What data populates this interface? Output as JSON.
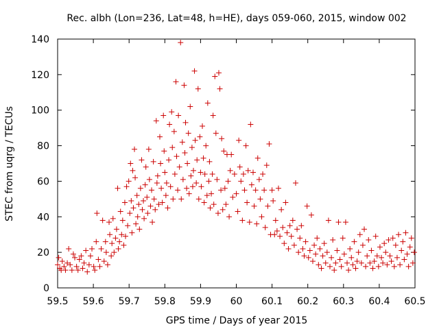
{
  "chart_data": {
    "type": "scatter",
    "title": "Rec. albh (Lon=236, Lat=48, h=HE), days 059-060, 2015, window 002",
    "xlabel": "GPS time / Days of year 2015",
    "ylabel": "STEC from uqrg / TECUs",
    "xlim": [
      59.5,
      60.5
    ],
    "ylim": [
      0,
      140
    ],
    "x_ticks": [
      59.5,
      59.6,
      59.7,
      59.8,
      59.9,
      60.0,
      60.1,
      60.2,
      60.3,
      60.4,
      60.5
    ],
    "x_tick_labels": [
      "59.5",
      "59.6",
      "59.7",
      "59.8",
      "59.9",
      "60",
      "60.1",
      "60.2",
      "60.3",
      "60.4",
      "60.5"
    ],
    "y_ticks": [
      0,
      20,
      40,
      60,
      80,
      100,
      120,
      140
    ],
    "y_tick_labels": [
      "0",
      "20",
      "40",
      "60",
      "80",
      "100",
      "120",
      "140"
    ],
    "grid": false,
    "marker": "+",
    "color": "#cc0000",
    "series": [
      {
        "name": "STEC",
        "points": [
          [
            59.5,
            13
          ],
          [
            59.503,
            17
          ],
          [
            59.506,
            11
          ],
          [
            59.51,
            10
          ],
          [
            59.513,
            15
          ],
          [
            59.518,
            12
          ],
          [
            59.522,
            10
          ],
          [
            59.527,
            14
          ],
          [
            59.531,
            22
          ],
          [
            59.535,
            13
          ],
          [
            59.54,
            10
          ],
          [
            59.544,
            19
          ],
          [
            59.548,
            17
          ],
          [
            59.553,
            12
          ],
          [
            59.557,
            10
          ],
          [
            59.561,
            16
          ],
          [
            59.566,
            18
          ],
          [
            59.57,
            11
          ],
          [
            59.574,
            14
          ],
          [
            59.579,
            21
          ],
          [
            59.583,
            9
          ],
          [
            59.588,
            13
          ],
          [
            59.592,
            18
          ],
          [
            59.596,
            22
          ],
          [
            59.601,
            12
          ],
          [
            59.604,
            10
          ],
          [
            59.608,
            26
          ],
          [
            59.61,
            42
          ],
          [
            59.614,
            16
          ],
          [
            59.618,
            12
          ],
          [
            59.622,
            22
          ],
          [
            59.626,
            38
          ],
          [
            59.63,
            15
          ],
          [
            59.634,
            26
          ],
          [
            59.636,
            20
          ],
          [
            59.64,
            13
          ],
          [
            59.644,
            37
          ],
          [
            59.646,
            30
          ],
          [
            59.65,
            18
          ],
          [
            59.652,
            25
          ],
          [
            59.655,
            39
          ],
          [
            59.658,
            20
          ],
          [
            59.662,
            28
          ],
          [
            59.665,
            33
          ],
          [
            59.668,
            56
          ],
          [
            59.67,
            22
          ],
          [
            59.673,
            26
          ],
          [
            59.676,
            43
          ],
          [
            59.679,
            30
          ],
          [
            59.682,
            38
          ],
          [
            59.685,
            24
          ],
          [
            59.688,
            48
          ],
          [
            59.69,
            29
          ],
          [
            59.693,
            57
          ],
          [
            59.696,
            35
          ],
          [
            59.699,
            60
          ],
          [
            59.702,
            42
          ],
          [
            59.704,
            70
          ],
          [
            59.706,
            49
          ],
          [
            59.708,
            31
          ],
          [
            59.71,
            66
          ],
          [
            59.712,
            45
          ],
          [
            59.715,
            78
          ],
          [
            59.717,
            62
          ],
          [
            59.719,
            36
          ],
          [
            59.722,
            52
          ],
          [
            59.724,
            40
          ],
          [
            59.727,
            47
          ],
          [
            59.729,
            33
          ],
          [
            59.732,
            56
          ],
          [
            59.735,
            72
          ],
          [
            59.737,
            44
          ],
          [
            59.74,
            49
          ],
          [
            59.742,
            39
          ],
          [
            59.745,
            58
          ],
          [
            59.747,
            68
          ],
          [
            59.75,
            51
          ],
          [
            59.752,
            42
          ],
          [
            59.755,
            78
          ],
          [
            59.757,
            61
          ],
          [
            59.76,
            46
          ],
          [
            59.763,
            55
          ],
          [
            59.765,
            37
          ],
          [
            59.768,
            71
          ],
          [
            59.77,
            50
          ],
          [
            59.773,
            44
          ],
          [
            59.776,
            94
          ],
          [
            59.778,
            59
          ],
          [
            59.78,
            63
          ],
          [
            59.783,
            47
          ],
          [
            59.786,
            85
          ],
          [
            59.788,
            70
          ],
          [
            59.79,
            56
          ],
          [
            59.793,
            48
          ],
          [
            59.796,
            97
          ],
          [
            59.798,
            77
          ],
          [
            59.8,
            65
          ],
          [
            59.803,
            52
          ],
          [
            59.805,
            59
          ],
          [
            59.808,
            45
          ],
          [
            59.811,
            72
          ],
          [
            59.813,
            92
          ],
          [
            59.816,
            57
          ],
          [
            59.819,
            99
          ],
          [
            59.821,
            79
          ],
          [
            59.823,
            50
          ],
          [
            59.826,
            88
          ],
          [
            59.828,
            64
          ],
          [
            59.831,
            116
          ],
          [
            59.833,
            74
          ],
          [
            59.836,
            55
          ],
          [
            59.838,
            97
          ],
          [
            59.841,
            68
          ],
          [
            59.844,
            138
          ],
          [
            59.846,
            50
          ],
          [
            59.849,
            82
          ],
          [
            59.851,
            61
          ],
          [
            59.854,
            114
          ],
          [
            59.856,
            76
          ],
          [
            59.858,
            93
          ],
          [
            59.861,
            56
          ],
          [
            59.863,
            70
          ],
          [
            59.866,
            87
          ],
          [
            59.868,
            53
          ],
          [
            59.871,
            102
          ],
          [
            59.873,
            63
          ],
          [
            59.876,
            79
          ],
          [
            59.878,
            57
          ],
          [
            59.88,
            66
          ],
          [
            59.883,
            122
          ],
          [
            59.885,
            83
          ],
          [
            59.888,
            59
          ],
          [
            59.89,
            72
          ],
          [
            59.893,
            112
          ],
          [
            59.895,
            50
          ],
          [
            59.898,
            85
          ],
          [
            59.9,
            65
          ],
          [
            59.902,
            57
          ],
          [
            59.905,
            91
          ],
          [
            59.908,
            73
          ],
          [
            59.91,
            48
          ],
          [
            59.912,
            64
          ],
          [
            59.915,
            80
          ],
          [
            59.918,
            52
          ],
          [
            59.92,
            104
          ],
          [
            59.923,
            60
          ],
          [
            59.925,
            71
          ],
          [
            59.927,
            45
          ],
          [
            59.93,
            53
          ],
          [
            59.933,
            64
          ],
          [
            59.935,
            97
          ],
          [
            59.937,
            47
          ],
          [
            59.94,
            119
          ],
          [
            59.943,
            87
          ],
          [
            59.946,
            61
          ],
          [
            59.949,
            42
          ],
          [
            59.951,
            121
          ],
          [
            59.954,
            112
          ],
          [
            59.957,
            55
          ],
          [
            59.959,
            84
          ],
          [
            59.962,
            44
          ],
          [
            59.965,
            77
          ],
          [
            59.968,
            56
          ],
          [
            59.971,
            47
          ],
          [
            59.974,
            75
          ],
          [
            59.977,
            60
          ],
          [
            59.98,
            40
          ],
          [
            59.983,
            66
          ],
          [
            59.986,
            75
          ],
          [
            59.99,
            51
          ],
          [
            59.995,
            64
          ],
          [
            60.0,
            53
          ],
          [
            60.004,
            43
          ],
          [
            60.007,
            83
          ],
          [
            60.01,
            68
          ],
          [
            60.013,
            60
          ],
          [
            60.017,
            38
          ],
          [
            60.02,
            64
          ],
          [
            60.023,
            55
          ],
          [
            60.027,
            80
          ],
          [
            60.03,
            48
          ],
          [
            60.033,
            66
          ],
          [
            60.037,
            37
          ],
          [
            60.04,
            92
          ],
          [
            60.043,
            58
          ],
          [
            60.047,
            65
          ],
          [
            60.05,
            46
          ],
          [
            60.054,
            55
          ],
          [
            60.057,
            36
          ],
          [
            60.06,
            73
          ],
          [
            60.064,
            61
          ],
          [
            60.067,
            50
          ],
          [
            60.071,
            40
          ],
          [
            60.074,
            64
          ],
          [
            60.078,
            55
          ],
          [
            60.081,
            34
          ],
          [
            60.085,
            69
          ],
          [
            60.088,
            46
          ],
          [
            60.092,
            81
          ],
          [
            60.096,
            30
          ],
          [
            60.1,
            55
          ],
          [
            60.103,
            49
          ],
          [
            60.107,
            30
          ],
          [
            60.11,
            38
          ],
          [
            60.114,
            32
          ],
          [
            60.118,
            56
          ],
          [
            60.122,
            29
          ],
          [
            60.126,
            44
          ],
          [
            60.13,
            34
          ],
          [
            60.134,
            25
          ],
          [
            60.138,
            48
          ],
          [
            60.142,
            31
          ],
          [
            60.146,
            22
          ],
          [
            60.15,
            35
          ],
          [
            60.154,
            29
          ],
          [
            60.158,
            38
          ],
          [
            60.162,
            24
          ],
          [
            60.166,
            59
          ],
          [
            60.17,
            33
          ],
          [
            60.174,
            20
          ],
          [
            60.178,
            28
          ],
          [
            60.182,
            35
          ],
          [
            60.186,
            22
          ],
          [
            60.19,
            18
          ],
          [
            60.194,
            26
          ],
          [
            60.198,
            46
          ],
          [
            60.202,
            17
          ],
          [
            60.206,
            21
          ],
          [
            60.21,
            41
          ],
          [
            60.214,
            15
          ],
          [
            60.218,
            24
          ],
          [
            60.222,
            19
          ],
          [
            60.226,
            28
          ],
          [
            60.23,
            13
          ],
          [
            60.234,
            22
          ],
          [
            60.238,
            11
          ],
          [
            60.242,
            18
          ],
          [
            60.246,
            25
          ],
          [
            60.25,
            14
          ],
          [
            60.254,
            20
          ],
          [
            60.258,
            38
          ],
          [
            60.262,
            12
          ],
          [
            60.266,
            17
          ],
          [
            60.27,
            27
          ],
          [
            60.274,
            10
          ],
          [
            60.278,
            14
          ],
          [
            60.282,
            21
          ],
          [
            60.286,
            37
          ],
          [
            60.29,
            16
          ],
          [
            60.294,
            12
          ],
          [
            60.298,
            28
          ],
          [
            60.302,
            19
          ],
          [
            60.306,
            37
          ],
          [
            60.31,
            14
          ],
          [
            60.314,
            10
          ],
          [
            60.318,
            22
          ],
          [
            60.322,
            17
          ],
          [
            60.326,
            13
          ],
          [
            60.33,
            26
          ],
          [
            60.334,
            11
          ],
          [
            60.338,
            15
          ],
          [
            60.342,
            20
          ],
          [
            60.346,
            30
          ],
          [
            60.35,
            14
          ],
          [
            60.354,
            24
          ],
          [
            60.358,
            33
          ],
          [
            60.362,
            12
          ],
          [
            60.366,
            18
          ],
          [
            60.37,
            27
          ],
          [
            60.374,
            14
          ],
          [
            60.378,
            21
          ],
          [
            60.382,
            11
          ],
          [
            60.386,
            15
          ],
          [
            60.39,
            29
          ],
          [
            60.394,
            18
          ],
          [
            60.398,
            12
          ],
          [
            60.402,
            23
          ],
          [
            60.406,
            17
          ],
          [
            60.41,
            14
          ],
          [
            60.414,
            25
          ],
          [
            60.418,
            20
          ],
          [
            60.422,
            13
          ],
          [
            60.426,
            27
          ],
          [
            60.43,
            18
          ],
          [
            60.434,
            15
          ],
          [
            60.438,
            28
          ],
          [
            60.442,
            12
          ],
          [
            60.446,
            24
          ],
          [
            60.45,
            17
          ],
          [
            60.454,
            30
          ],
          [
            60.458,
            13
          ],
          [
            60.462,
            21
          ],
          [
            60.466,
            26
          ],
          [
            60.47,
            16
          ],
          [
            60.474,
            31
          ],
          [
            60.478,
            19
          ],
          [
            60.482,
            12
          ],
          [
            60.486,
            23
          ],
          [
            60.49,
            28
          ],
          [
            60.494,
            14
          ],
          [
            60.498,
            20
          ]
        ]
      }
    ]
  }
}
